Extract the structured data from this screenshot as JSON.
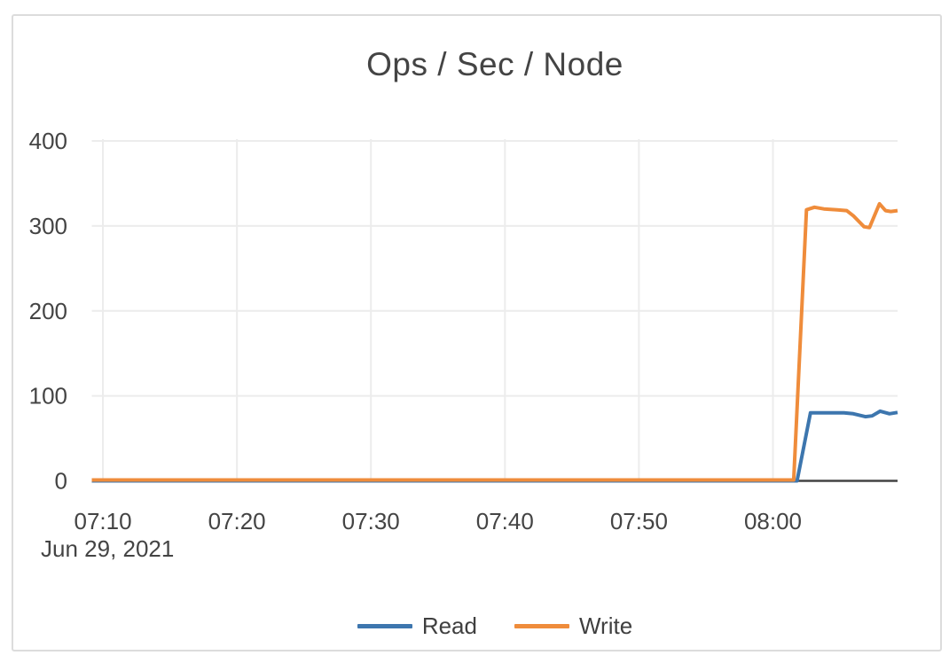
{
  "chart_data": {
    "type": "line",
    "title": "Ops / Sec / Node",
    "x_axis": {
      "date_label": "Jun 29, 2021",
      "unit": "minutes-since-07:00",
      "xlim": [
        9.17,
        69.3
      ],
      "ticks": [
        {
          "t": 10,
          "label": "07:10"
        },
        {
          "t": 20,
          "label": "07:20"
        },
        {
          "t": 30,
          "label": "07:30"
        },
        {
          "t": 40,
          "label": "07:40"
        },
        {
          "t": 50,
          "label": "07:50"
        },
        {
          "t": 60,
          "label": "08:00"
        }
      ]
    },
    "y_axis": {
      "ylim": [
        0,
        400
      ],
      "ticks": [
        0,
        100,
        200,
        300,
        400
      ]
    },
    "grid": true,
    "legend_position": "bottom-center",
    "colors": {
      "grid": "#ececec",
      "axis_line": "#444444",
      "text": "#444444",
      "read": "#3d76ae",
      "write": "#ef8c3b"
    },
    "series": [
      {
        "name": "Read",
        "color": "#3d76ae",
        "points": [
          [
            9.17,
            0
          ],
          [
            20,
            0
          ],
          [
            30,
            0
          ],
          [
            40,
            0
          ],
          [
            50,
            0
          ],
          [
            60,
            0
          ],
          [
            61.8,
            0
          ],
          [
            62.8,
            80
          ],
          [
            63.6,
            80
          ],
          [
            64.5,
            80
          ],
          [
            65.3,
            80
          ],
          [
            66.0,
            79
          ],
          [
            66.9,
            75.5
          ],
          [
            67.4,
            76.5
          ],
          [
            68.0,
            82
          ],
          [
            68.7,
            79
          ],
          [
            69.3,
            80.5
          ]
        ]
      },
      {
        "name": "Write",
        "color": "#ef8c3b",
        "points": [
          [
            9.17,
            1
          ],
          [
            20,
            1
          ],
          [
            30,
            1
          ],
          [
            40,
            1
          ],
          [
            50,
            1
          ],
          [
            60,
            1
          ],
          [
            61.55,
            1
          ],
          [
            62.5,
            319
          ],
          [
            63.1,
            322
          ],
          [
            63.8,
            320
          ],
          [
            64.8,
            319
          ],
          [
            65.5,
            318
          ],
          [
            66.0,
            312
          ],
          [
            66.8,
            299
          ],
          [
            67.2,
            298
          ],
          [
            67.95,
            326
          ],
          [
            68.4,
            318
          ],
          [
            68.8,
            317
          ],
          [
            69.3,
            318
          ]
        ]
      }
    ]
  }
}
